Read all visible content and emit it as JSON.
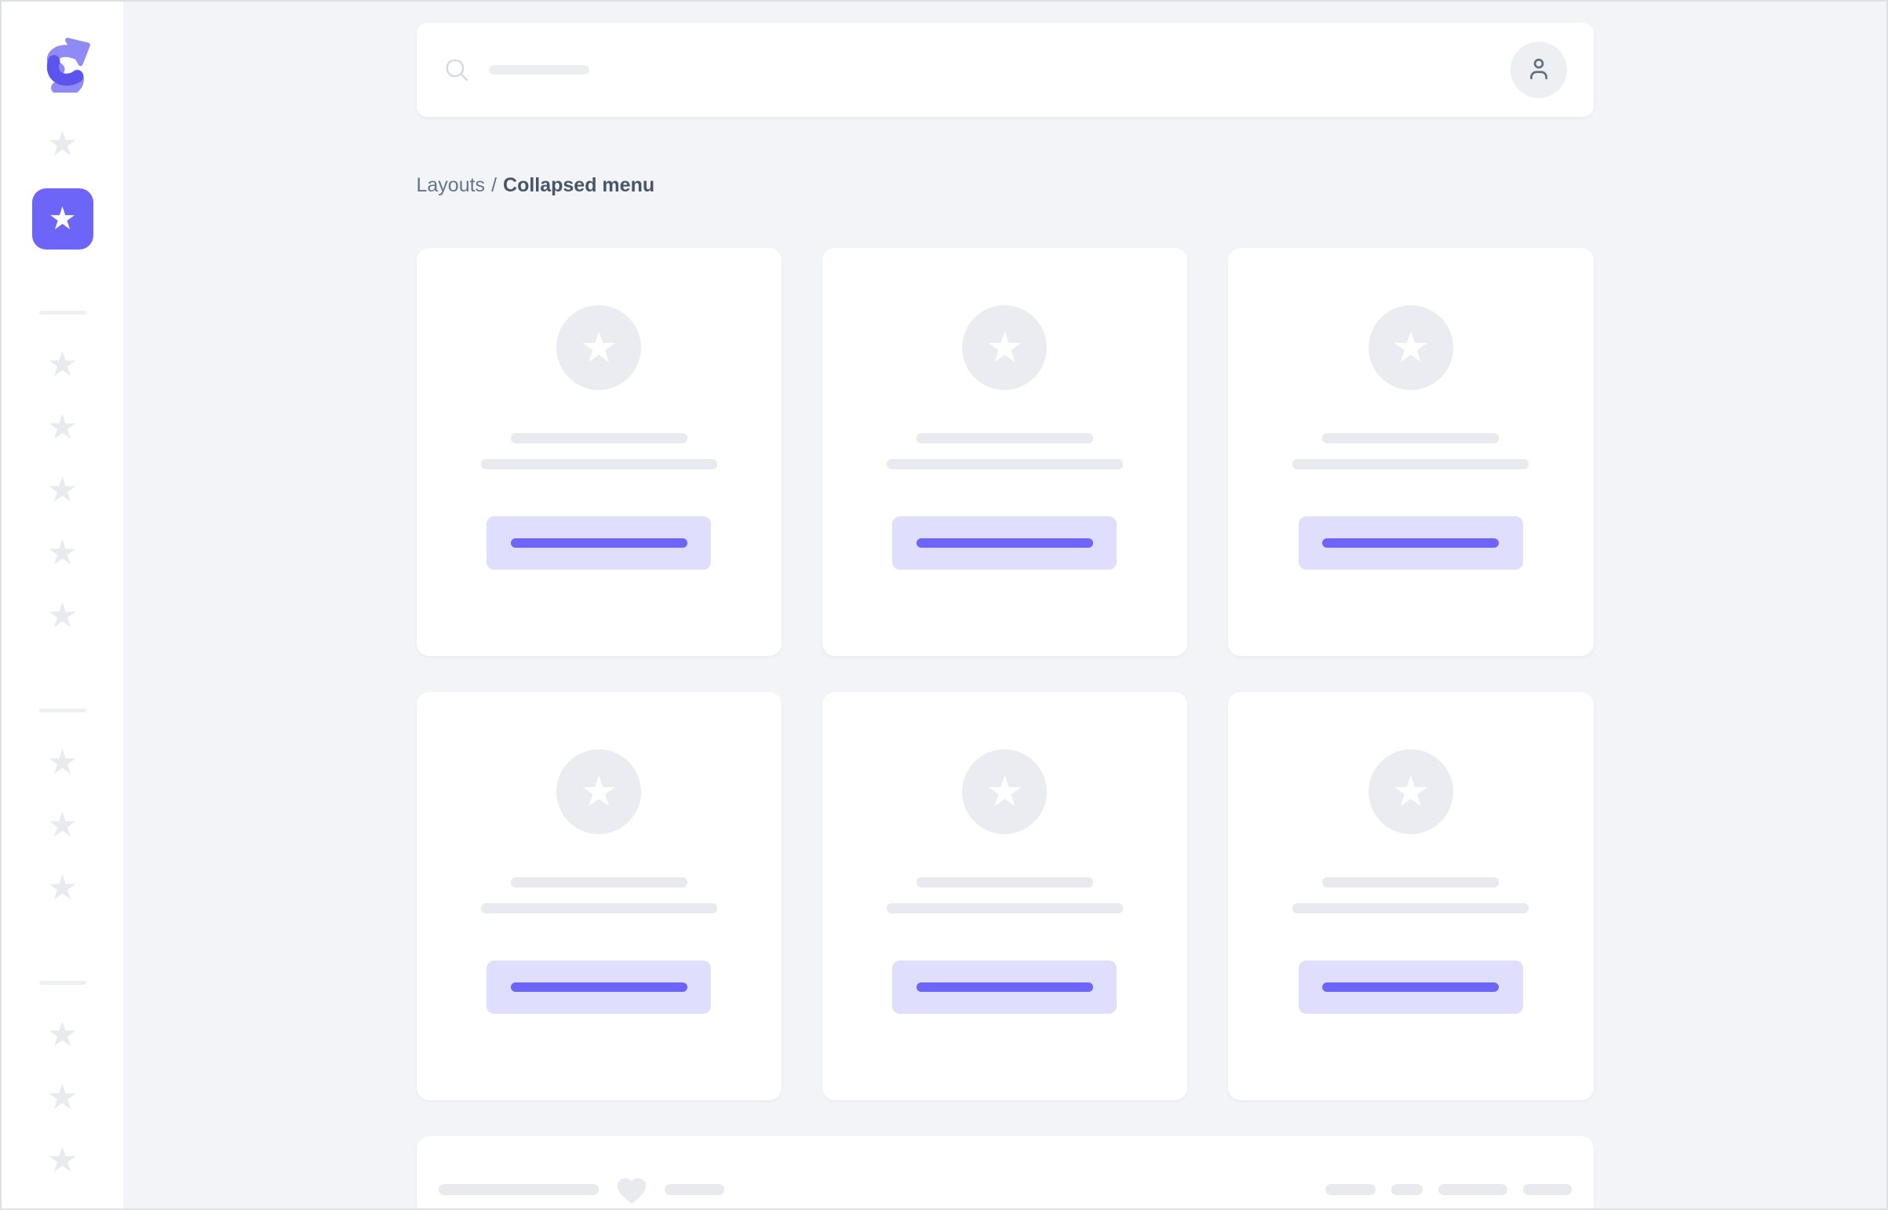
{
  "breadcrumb": {
    "parent": "Layouts",
    "separator": "/",
    "current": "Collapsed menu"
  },
  "sidebar": {
    "logo_icon": "shuffle-logo-icon",
    "top_items": [
      {
        "icon": "star-icon",
        "active": false
      },
      {
        "icon": "star-icon",
        "active": true
      }
    ],
    "star_groups": [
      5,
      3,
      3
    ]
  },
  "header": {
    "search_icon": "search-icon",
    "search_value": "",
    "avatar_icon": "user-icon"
  },
  "grid": {
    "card_count": 6,
    "card": {
      "media_icon": "star-icon",
      "placeholder_line_count": 2,
      "has_button_placeholder": true
    }
  },
  "footer": {
    "heart_icon": "heart-icon",
    "right_dash_count": 4
  },
  "colors": {
    "bg": "#f3f4f8",
    "pageBorder": "#dde0e4",
    "cardBg": "#ffffff",
    "indigo": "#6c65f7",
    "indigoDeep": "#5b55ee",
    "indigoSoft": "#8f8af5",
    "lavender": "#dfdefc",
    "grayBar": "#e9eaef",
    "grayCircle": "#ebecf1",
    "divider": "#eff0f5",
    "searchBar": "#eceef2",
    "iconLight": "#d7d9e0",
    "avatarBg": "#edeff3",
    "slateIcon": "#5f7181",
    "textLight": "#64748b",
    "textDark": "#475569"
  }
}
